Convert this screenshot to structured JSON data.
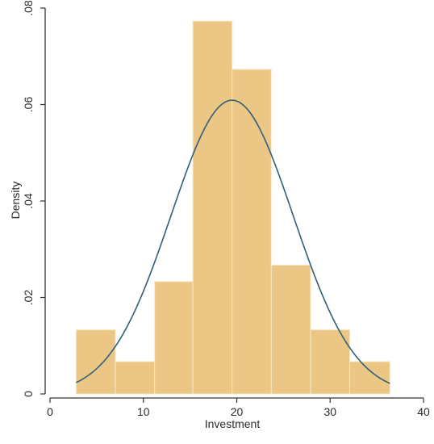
{
  "chart_data": {
    "type": "bar",
    "title": "",
    "xlabel": "Investment",
    "ylabel": "Density",
    "xlim": [
      0,
      40
    ],
    "ylim": [
      0,
      0.08
    ],
    "x_ticks": [
      0,
      10,
      20,
      30,
      40
    ],
    "x_tick_labels": [
      "0",
      "10",
      "20",
      "30",
      "40"
    ],
    "y_ticks": [
      0,
      0.02,
      0.04,
      0.06,
      0.08
    ],
    "y_tick_labels": [
      "0",
      ".02",
      ".04",
      ".06",
      ".08"
    ],
    "grid": false,
    "legend": "none",
    "bins": [
      {
        "x0": 2.8,
        "x1": 7.0,
        "density": 0.0133
      },
      {
        "x0": 7.0,
        "x1": 11.2,
        "density": 0.0067
      },
      {
        "x0": 11.2,
        "x1": 15.3,
        "density": 0.0233
      },
      {
        "x0": 15.3,
        "x1": 19.5,
        "density": 0.0773
      },
      {
        "x0": 19.5,
        "x1": 23.7,
        "density": 0.0673
      },
      {
        "x0": 23.7,
        "x1": 27.9,
        "density": 0.0267
      },
      {
        "x0": 27.9,
        "x1": 32.1,
        "density": 0.0133
      },
      {
        "x0": 32.1,
        "x1": 36.4,
        "density": 0.0067
      }
    ],
    "normal_curve": {
      "mean": 19.5,
      "sd": 6.55,
      "x_range": [
        2.8,
        36.4
      ]
    },
    "colors": {
      "bar_fill": "#ecc684",
      "bar_edge": "#f6e8c8",
      "curve": "#2f5f7a",
      "axis": "#333333"
    }
  }
}
